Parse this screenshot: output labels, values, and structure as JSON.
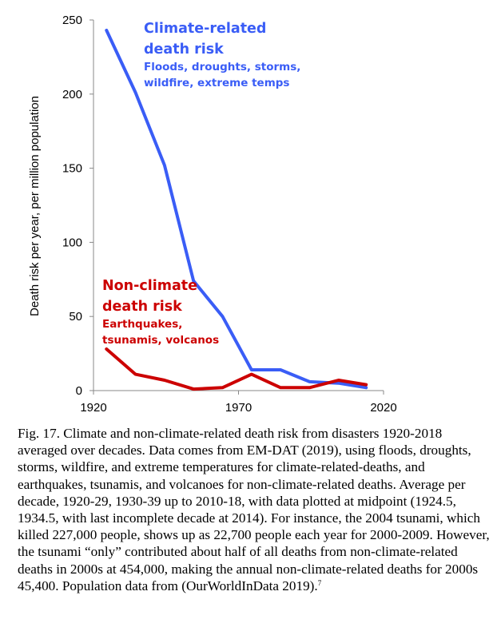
{
  "chart_data": {
    "type": "line",
    "x": [
      1924.5,
      1934.5,
      1944.5,
      1954.5,
      1964.5,
      1974.5,
      1984.5,
      1994.5,
      2004.5,
      2014
    ],
    "series": [
      {
        "name": "Climate-related death risk",
        "color": "#3a5df6",
        "values": [
          243,
          201,
          152,
          74,
          50,
          14,
          14,
          6,
          5,
          2
        ]
      },
      {
        "name": "Non-climate death risk",
        "color": "#cc0000",
        "values": [
          28,
          11,
          7,
          1,
          2,
          11,
          2,
          2,
          7,
          4
        ]
      }
    ],
    "xlim": [
      1920,
      2020
    ],
    "ylim": [
      0,
      250
    ],
    "x_ticks": [
      "1920",
      "1970",
      "2020"
    ],
    "y_ticks": [
      "0",
      "50",
      "100",
      "150",
      "200",
      "250"
    ],
    "ylabel": "Death risk per year, per million population",
    "annotations": {
      "climate_title_1": "Climate-related",
      "climate_title_2": "death risk",
      "climate_sub_1": "Floods, droughts, storms,",
      "climate_sub_2": "wildfire, extreme temps",
      "nonclimate_title_1": "Non-climate",
      "nonclimate_title_2": "death risk",
      "nonclimate_sub_1": "Earthquakes,",
      "nonclimate_sub_2": "tsunamis, volcanos"
    }
  },
  "caption": {
    "main": "Fig. 17. Climate and non-climate-related death risk from disasters 1920-2018 averaged over decades. Data comes from EM-DAT (2019), using floods, droughts, storms, wildfire, and extreme temperatures for climate-related-deaths, and earthquakes, tsunamis, and volcanoes for non-climate-related deaths. Average per decade, 1920-29, 1930-39 up to 2010-18, with data plotted at midpoint (1924.5, 1934.5, with last incomplete decade at 2014). For instance, the 2004 tsunami, which killed 227,000 people, shows up as 22,700 people each year for 2000-2009. However, the tsunami “only” contributed about half of all deaths from non-climate-related deaths in 2000s at 454,000, making the annual non-climate-related deaths for 2000s 45,400. Population data from (OurWorldInData 2019).",
    "footnote": "7"
  }
}
